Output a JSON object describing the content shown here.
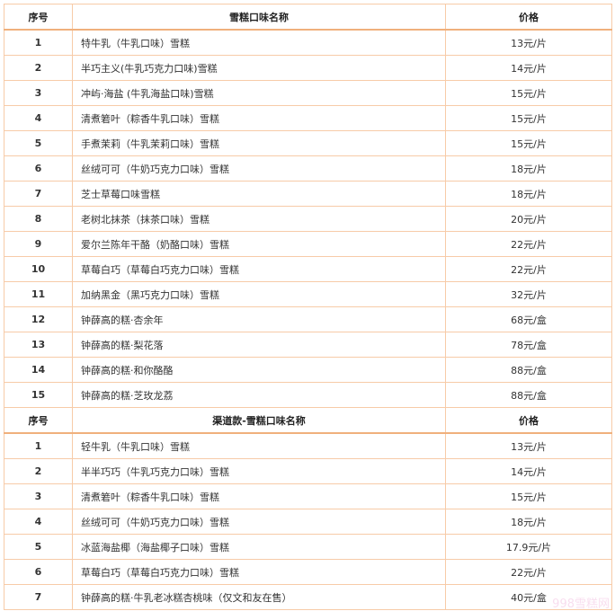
{
  "sections": [
    {
      "headers": [
        "序号",
        "雪糕口味名称",
        "价格"
      ],
      "rows": [
        [
          "1",
          "特牛乳（牛乳口味）雪糕",
          "13元/片"
        ],
        [
          "2",
          "半巧主义(牛乳巧克力口味)雪糕",
          "14元/片"
        ],
        [
          "3",
          "冲屿·海盐 (牛乳海盐口味)雪糕",
          "15元/片"
        ],
        [
          "4",
          "清煮箬叶（粽香牛乳口味）雪糕",
          "15元/片"
        ],
        [
          "5",
          "手煮茉莉（牛乳茉莉口味）雪糕",
          "15元/片"
        ],
        [
          "6",
          "丝绒可可（牛奶巧克力口味）雪糕",
          "18元/片"
        ],
        [
          "7",
          "芝士草莓口味雪糕",
          "18元/片"
        ],
        [
          "8",
          "老树北抹茶（抹茶口味）雪糕",
          "20元/片"
        ],
        [
          "9",
          "爱尔兰陈年干酪（奶酪口味）雪糕",
          "22元/片"
        ],
        [
          "10",
          "草莓白巧（草莓白巧克力口味）雪糕",
          "22元/片"
        ],
        [
          "11",
          "加纳黑金（黑巧克力口味）雪糕",
          "32元/片"
        ],
        [
          "12",
          "钟薛高的糕·杏余年",
          "68元/盒"
        ],
        [
          "13",
          "钟薛高的糕·梨花落",
          "78元/盒"
        ],
        [
          "14",
          "钟薛高的糕·和你酪酪",
          "88元/盒"
        ],
        [
          "15",
          "钟薛高的糕·芝玫龙荔",
          "88元/盒"
        ]
      ]
    },
    {
      "headers": [
        "序号",
        "渠道款-雪糕口味名称",
        "价格"
      ],
      "rows": [
        [
          "1",
          "轻牛乳（牛乳口味）雪糕",
          "13元/片"
        ],
        [
          "2",
          "半半巧巧（牛乳巧克力口味）雪糕",
          "14元/片"
        ],
        [
          "3",
          "清煮箬叶（粽香牛乳口味）雪糕",
          "15元/片"
        ],
        [
          "4",
          "丝绒可可（牛奶巧克力口味）雪糕",
          "18元/片"
        ],
        [
          "5",
          "冰蓝海盐椰（海盐椰子口味）雪糕",
          "17.9元/片"
        ],
        [
          "6",
          "草莓白巧（草莓白巧克力口味）雪糕",
          "22元/片"
        ],
        [
          "7",
          "钟薛高的糕·牛乳老冰糕杏桃味（仅文和友在售）",
          "40元/盒"
        ]
      ]
    }
  ],
  "watermark": "998雪糕网",
  "colors": {
    "border": "#f7cba8",
    "header_rule": "#f0b07c"
  }
}
